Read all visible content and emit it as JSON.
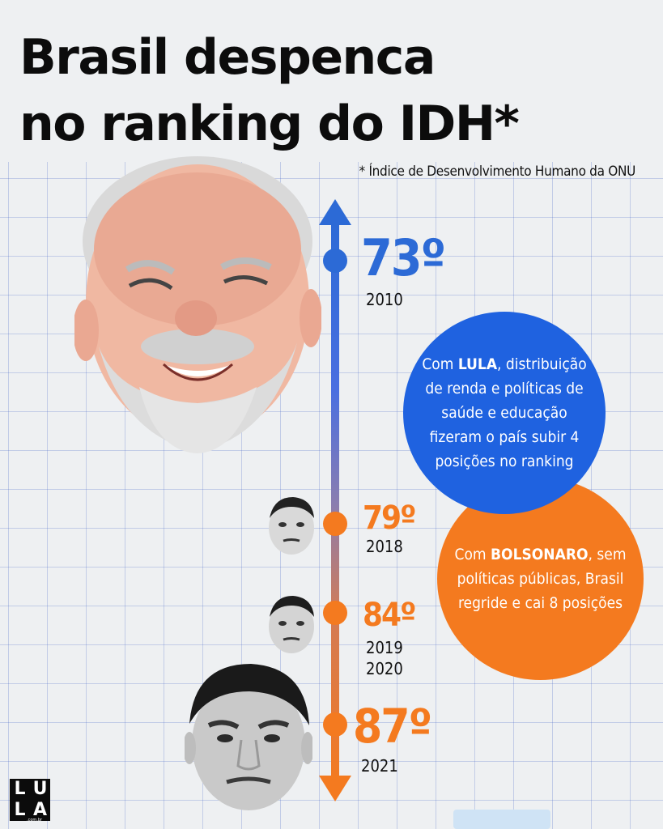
{
  "title": "Brasil despenca\nno ranking do IDH*",
  "footnote": "* Índice de Desenvolvimento Humano da ONU",
  "timeline": [
    {
      "rank": "73º",
      "year": "2010"
    },
    {
      "rank": "79º",
      "year": "2018"
    },
    {
      "rank": "84º",
      "year": "2019\n2020"
    },
    {
      "rank": "87º",
      "year": "2021"
    }
  ],
  "bubbles": {
    "lula": {
      "prefix": "Com ",
      "name": "LULA",
      "text": ", distribuição de renda e políticas de saúde e educação fizeram o país subir 4 posições no ranking"
    },
    "bolsonaro": {
      "prefix": "Com ",
      "name": "BOLSONARO",
      "text": ", sem políticas públicas, Brasil regride e cai 8 posições"
    }
  },
  "logo": {
    "letters": [
      "L",
      "U",
      "L",
      "A"
    ],
    "sub": ".com.br"
  },
  "colors": {
    "blue": "#1f62e0",
    "orange": "#f47a1f",
    "title": "#0c0c0c"
  },
  "icons": [
    "lula-face-photo",
    "bolsonaro-face-photo-small",
    "bolsonaro-face-photo-medium",
    "bolsonaro-face-photo-large"
  ]
}
